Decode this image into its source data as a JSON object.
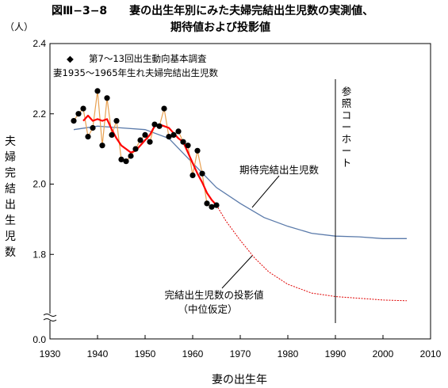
{
  "chart_data": {
    "type": "line",
    "title_line1": "図Ⅲ−3−8　　妻の出生年別にみた夫婦完結出生児数の実測値、",
    "title_line2": "期待値および投影値",
    "unit_label": "（人）",
    "xlabel": "妻の出生年",
    "ylabel": "夫婦完結出生児数",
    "xlim": [
      1930,
      2010
    ],
    "ylim_display": [
      1.6,
      2.4
    ],
    "axis_break": true,
    "axis_break_bottom_label": "0.0",
    "x_ticks": [
      "1930",
      "1940",
      "1950",
      "1960",
      "1970",
      "1980",
      "1990",
      "2000",
      "2010"
    ],
    "y_ticks": [
      {
        "value": 1.8,
        "label": "1.8"
      },
      {
        "value": 2.0,
        "label": "2.0"
      },
      {
        "value": 2.2,
        "label": "2.2"
      },
      {
        "value": 2.4,
        "label": "2.4"
      }
    ],
    "legend_marker_glyph": "◆",
    "legend_line1": "第7～13回出生動向基本調査",
    "legend_line2": "妻1935～1965年生れ夫婦完結出生児数",
    "reference_cohort_x": 1990,
    "reference_cohort_label": "参照コーホート",
    "annotation_expected": "期待完結出生児数",
    "annotation_projected_line1": "完結出生児数の投影値",
    "annotation_projected_line2": "（中位仮定）",
    "series": [
      {
        "key": "observed",
        "color": "#e8a050",
        "marker_color": "#000000",
        "x": [
          1935,
          1936,
          1937,
          1938,
          1939,
          1940,
          1941,
          1942,
          1943,
          1944,
          1945,
          1946,
          1947,
          1948,
          1949,
          1950,
          1951,
          1952,
          1953,
          1954,
          1955,
          1956,
          1957,
          1958,
          1959,
          1960,
          1961,
          1962,
          1963,
          1964,
          1965
        ],
        "y": [
          2.18,
          2.2,
          2.215,
          2.135,
          2.16,
          2.265,
          2.11,
          2.245,
          2.14,
          2.18,
          2.07,
          2.065,
          2.08,
          2.1,
          2.125,
          2.14,
          2.12,
          2.17,
          2.165,
          2.215,
          2.135,
          2.14,
          2.15,
          2.12,
          2.11,
          2.025,
          2.095,
          2.03,
          1.945,
          1.935,
          1.94
        ]
      },
      {
        "key": "moving_average",
        "color": "#ff0000",
        "x": [
          1937,
          1938,
          1939,
          1940,
          1941,
          1942,
          1943,
          1944,
          1945,
          1946,
          1947,
          1948,
          1949,
          1950,
          1951,
          1952,
          1953,
          1954,
          1955,
          1956,
          1957,
          1958,
          1959,
          1960,
          1961,
          1962,
          1963,
          1964,
          1965
        ],
        "y": [
          2.18,
          2.195,
          2.18,
          2.185,
          2.18,
          2.185,
          2.155,
          2.13,
          2.11,
          2.1,
          2.09,
          2.095,
          2.11,
          2.125,
          2.14,
          2.165,
          2.17,
          2.165,
          2.16,
          2.145,
          2.13,
          2.12,
          2.09,
          2.06,
          2.03,
          2.005,
          1.975,
          1.955,
          1.94
        ]
      },
      {
        "key": "expected",
        "color": "#5a7aaa",
        "x": [
          1935,
          1940,
          1945,
          1950,
          1955,
          1960,
          1965,
          1970,
          1975,
          1980,
          1985,
          1990,
          1995,
          2000,
          2005
        ],
        "y": [
          2.155,
          2.165,
          2.16,
          2.155,
          2.13,
          2.06,
          1.99,
          1.945,
          1.905,
          1.88,
          1.86,
          1.852,
          1.85,
          1.845,
          1.845
        ]
      },
      {
        "key": "projected",
        "color": "#e00000",
        "x": [
          1965,
          1967,
          1970,
          1973,
          1976,
          1980,
          1985,
          1990,
          1995,
          2000,
          2005
        ],
        "y": [
          1.94,
          1.895,
          1.84,
          1.79,
          1.75,
          1.715,
          1.69,
          1.68,
          1.675,
          1.67,
          1.668
        ]
      }
    ]
  }
}
